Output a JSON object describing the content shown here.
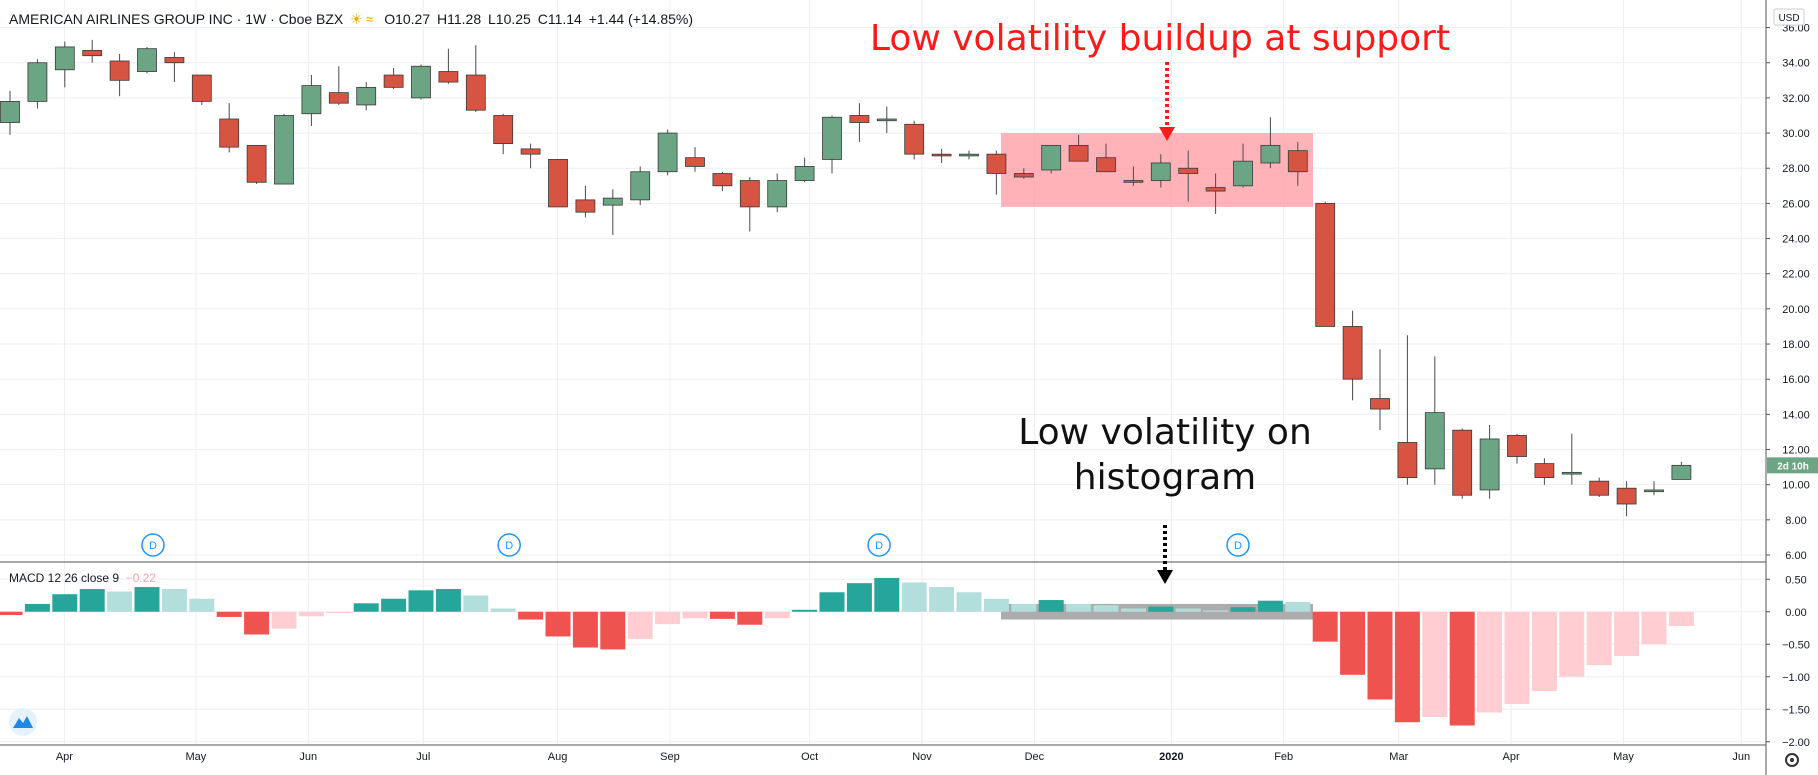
{
  "header": {
    "symbol": "AMERICAN AIRLINES GROUP INC · 1W · Cboe BZX",
    "open": "O10.27",
    "high": "H11.28",
    "low": "L10.25",
    "close": "C11.14",
    "change": "+1.44 (+14.85%)"
  },
  "macd_legend": {
    "label": "MACD 12 26 close 9",
    "value": "−0.22"
  },
  "annotations": {
    "top": "Low volatility buildup at support",
    "bottom_line1": "Low volatility on",
    "bottom_line2": "histogram"
  },
  "currency": "USD",
  "price_badge": {
    "value": "2d 10h",
    "color": "#6ba583"
  },
  "dividend_marker": "D",
  "colors": {
    "up": "#6ba583",
    "down": "#d75442",
    "hist_pos_strong": "#26a69a",
    "hist_pos_weak": "#b2dfdb",
    "hist_neg_strong": "#ef5350",
    "hist_neg_weak": "#ffcdd2",
    "support_box": "#ff9aa2",
    "hist_box": "#9e9e9e",
    "annotation_red": "#ff1a1a"
  },
  "chart_data": [
    {
      "type": "candlestick",
      "title": "AMERICAN AIRLINES GROUP INC · 1W · Cboe BZX",
      "ylabel": "USD",
      "ylim": [
        6,
        37
      ],
      "y_ticks": [
        "6.00",
        "8.00",
        "10.00",
        "12.00",
        "14.00",
        "16.00",
        "18.00",
        "20.00",
        "22.00",
        "24.00",
        "26.00",
        "28.00",
        "30.00",
        "32.00",
        "34.00",
        "36.00"
      ],
      "x_ticks": [
        "Apr",
        "May",
        "Jun",
        "Jul",
        "Aug",
        "Sep",
        "Oct",
        "Nov",
        "Dec",
        "2020",
        "Feb",
        "Mar",
        "Apr",
        "May",
        "Jun"
      ],
      "grid": true,
      "dividend_markers": [
        "May",
        "Aug",
        "Nov",
        "Feb"
      ],
      "highlight": {
        "label": "Low volatility buildup at support",
        "from": "Dec",
        "to": "Feb",
        "low": 25.8,
        "high": 30.0
      },
      "candles": [
        {
          "o": 30.6,
          "h": 32.4,
          "l": 29.9,
          "c": 31.8
        },
        {
          "o": 31.8,
          "h": 34.2,
          "l": 31.4,
          "c": 34.0
        },
        {
          "o": 33.6,
          "h": 35.2,
          "l": 32.6,
          "c": 34.9
        },
        {
          "o": 34.7,
          "h": 35.3,
          "l": 34.0,
          "c": 34.4
        },
        {
          "o": 34.1,
          "h": 34.5,
          "l": 32.1,
          "c": 33.0
        },
        {
          "o": 33.5,
          "h": 34.9,
          "l": 33.4,
          "c": 34.8
        },
        {
          "o": 34.3,
          "h": 34.6,
          "l": 32.9,
          "c": 34.0
        },
        {
          "o": 33.3,
          "h": 33.3,
          "l": 31.6,
          "c": 31.8
        },
        {
          "o": 30.8,
          "h": 31.7,
          "l": 28.9,
          "c": 29.2
        },
        {
          "o": 29.3,
          "h": 29.3,
          "l": 27.1,
          "c": 27.2
        },
        {
          "o": 27.1,
          "h": 31.1,
          "l": 27.1,
          "c": 31.0
        },
        {
          "o": 31.1,
          "h": 33.3,
          "l": 30.4,
          "c": 32.7
        },
        {
          "o": 32.3,
          "h": 33.8,
          "l": 31.6,
          "c": 31.7
        },
        {
          "o": 31.6,
          "h": 32.9,
          "l": 31.3,
          "c": 32.6
        },
        {
          "o": 33.3,
          "h": 33.7,
          "l": 32.5,
          "c": 32.6
        },
        {
          "o": 32.0,
          "h": 33.9,
          "l": 31.9,
          "c": 33.8
        },
        {
          "o": 33.5,
          "h": 34.8,
          "l": 32.8,
          "c": 32.9
        },
        {
          "o": 33.3,
          "h": 35.0,
          "l": 31.2,
          "c": 31.3
        },
        {
          "o": 31.0,
          "h": 31.1,
          "l": 28.8,
          "c": 29.4
        },
        {
          "o": 29.1,
          "h": 29.4,
          "l": 28.0,
          "c": 28.8
        },
        {
          "o": 28.5,
          "h": 28.5,
          "l": 25.8,
          "c": 25.8
        },
        {
          "o": 26.2,
          "h": 27.0,
          "l": 25.2,
          "c": 25.5
        },
        {
          "o": 25.9,
          "h": 26.8,
          "l": 24.2,
          "c": 26.3
        },
        {
          "o": 26.2,
          "h": 28.1,
          "l": 25.9,
          "c": 27.8
        },
        {
          "o": 27.8,
          "h": 30.2,
          "l": 27.6,
          "c": 30.0
        },
        {
          "o": 28.6,
          "h": 29.2,
          "l": 27.8,
          "c": 28.1
        },
        {
          "o": 27.7,
          "h": 27.8,
          "l": 26.7,
          "c": 27.0
        },
        {
          "o": 27.3,
          "h": 27.5,
          "l": 24.4,
          "c": 25.8
        },
        {
          "o": 25.8,
          "h": 27.7,
          "l": 25.5,
          "c": 27.3
        },
        {
          "o": 27.3,
          "h": 28.6,
          "l": 27.2,
          "c": 28.1
        },
        {
          "o": 28.5,
          "h": 31.0,
          "l": 27.7,
          "c": 30.9
        },
        {
          "o": 31.0,
          "h": 31.7,
          "l": 29.5,
          "c": 30.6
        },
        {
          "o": 30.7,
          "h": 31.5,
          "l": 30.0,
          "c": 30.8
        },
        {
          "o": 30.5,
          "h": 30.7,
          "l": 28.5,
          "c": 28.8
        },
        {
          "o": 28.8,
          "h": 29.1,
          "l": 28.3,
          "c": 28.7
        },
        {
          "o": 28.7,
          "h": 29.0,
          "l": 28.5,
          "c": 28.8
        },
        {
          "o": 28.8,
          "h": 29.0,
          "l": 26.5,
          "c": 27.7
        },
        {
          "o": 27.7,
          "h": 28.0,
          "l": 27.4,
          "c": 27.5
        },
        {
          "o": 27.9,
          "h": 29.3,
          "l": 27.7,
          "c": 29.3
        },
        {
          "o": 29.3,
          "h": 29.9,
          "l": 28.4,
          "c": 28.4
        },
        {
          "o": 28.6,
          "h": 29.4,
          "l": 27.9,
          "c": 27.8
        },
        {
          "o": 27.3,
          "h": 28.1,
          "l": 27.0,
          "c": 27.2
        },
        {
          "o": 27.3,
          "h": 28.8,
          "l": 26.9,
          "c": 28.3
        },
        {
          "o": 28.0,
          "h": 29.0,
          "l": 26.1,
          "c": 27.7
        },
        {
          "o": 26.9,
          "h": 27.7,
          "l": 25.4,
          "c": 26.7
        },
        {
          "o": 27.0,
          "h": 29.4,
          "l": 26.9,
          "c": 28.4
        },
        {
          "o": 28.3,
          "h": 30.9,
          "l": 28.0,
          "c": 29.3
        },
        {
          "o": 29.0,
          "h": 29.5,
          "l": 27.0,
          "c": 27.8
        },
        {
          "o": 26.0,
          "h": 26.1,
          "l": 19.0,
          "c": 19.0
        },
        {
          "o": 19.0,
          "h": 19.9,
          "l": 14.8,
          "c": 16.0
        },
        {
          "o": 14.9,
          "h": 17.7,
          "l": 13.1,
          "c": 14.3
        },
        {
          "o": 12.4,
          "h": 18.5,
          "l": 10.0,
          "c": 10.4
        },
        {
          "o": 10.9,
          "h": 17.3,
          "l": 10.0,
          "c": 14.1
        },
        {
          "o": 13.1,
          "h": 13.2,
          "l": 9.2,
          "c": 9.4
        },
        {
          "o": 9.7,
          "h": 13.4,
          "l": 9.2,
          "c": 12.6
        },
        {
          "o": 12.8,
          "h": 12.9,
          "l": 11.2,
          "c": 11.6
        },
        {
          "o": 11.2,
          "h": 11.5,
          "l": 10.0,
          "c": 10.4
        },
        {
          "o": 10.6,
          "h": 12.9,
          "l": 10.0,
          "c": 10.7
        },
        {
          "o": 10.2,
          "h": 10.4,
          "l": 9.3,
          "c": 9.4
        },
        {
          "o": 9.8,
          "h": 10.2,
          "l": 8.2,
          "c": 8.9
        },
        {
          "o": 9.6,
          "h": 10.2,
          "l": 9.4,
          "c": 9.7
        },
        {
          "o": 10.3,
          "h": 11.3,
          "l": 10.3,
          "c": 11.1
        }
      ]
    },
    {
      "type": "bar",
      "title": "MACD 12 26 close 9",
      "ylim": [
        -2.05,
        0.75
      ],
      "y_ticks": [
        "0.50",
        "0.00",
        "-0.50",
        "-1.00",
        "-1.50",
        "-2.00"
      ],
      "highlight": {
        "label": "Low volatility on histogram",
        "from": "Dec",
        "to": "Feb",
        "low": -0.12,
        "high": 0.12
      },
      "values": [
        -0.05,
        0.12,
        0.27,
        0.35,
        0.31,
        0.38,
        0.35,
        0.2,
        -0.08,
        -0.35,
        -0.26,
        -0.07,
        -0.02,
        0.13,
        0.2,
        0.33,
        0.35,
        0.25,
        0.05,
        -0.12,
        -0.38,
        -0.55,
        -0.58,
        -0.42,
        -0.19,
        -0.1,
        -0.11,
        -0.2,
        -0.1,
        0.03,
        0.3,
        0.44,
        0.52,
        0.45,
        0.38,
        0.3,
        0.2,
        0.12,
        0.18,
        0.12,
        0.1,
        0.05,
        0.08,
        0.05,
        0.02,
        0.07,
        0.17,
        0.15,
        -0.46,
        -0.97,
        -1.35,
        -1.7,
        -1.62,
        -1.75,
        -1.55,
        -1.42,
        -1.22,
        -1.0,
        -0.82,
        -0.68,
        -0.5,
        -0.22
      ]
    }
  ]
}
